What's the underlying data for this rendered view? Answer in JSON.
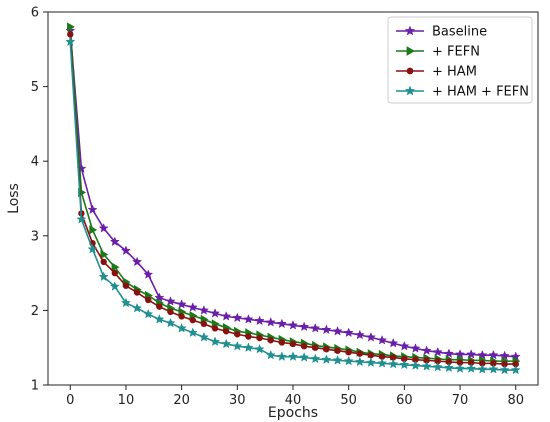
{
  "chart_data": {
    "type": "line",
    "title": "",
    "xlabel": "Epochs",
    "ylabel": "Loss",
    "xlim": [
      -4,
      84
    ],
    "ylim": [
      1,
      6
    ],
    "xticks": [
      0,
      10,
      20,
      30,
      40,
      50,
      60,
      70,
      80
    ],
    "yticks": [
      1,
      2,
      3,
      4,
      5,
      6
    ],
    "legend_position": "top-right",
    "grid": false,
    "series": [
      {
        "name": "Baseline",
        "color": "#6a1fa8",
        "marker": "star",
        "x": [
          0,
          2,
          4,
          6,
          8,
          10,
          12,
          14,
          16,
          18,
          20,
          22,
          24,
          26,
          28,
          30,
          32,
          34,
          36,
          38,
          40,
          42,
          44,
          46,
          48,
          50,
          52,
          54,
          56,
          58,
          60,
          62,
          64,
          66,
          68,
          70,
          72,
          74,
          76,
          78,
          80
        ],
        "y": [
          5.75,
          3.9,
          3.35,
          3.1,
          2.92,
          2.8,
          2.65,
          2.48,
          2.17,
          2.12,
          2.08,
          2.04,
          2.0,
          1.96,
          1.92,
          1.9,
          1.88,
          1.86,
          1.84,
          1.82,
          1.8,
          1.78,
          1.76,
          1.74,
          1.72,
          1.7,
          1.67,
          1.64,
          1.6,
          1.56,
          1.52,
          1.49,
          1.46,
          1.44,
          1.42,
          1.41,
          1.41,
          1.4,
          1.4,
          1.39,
          1.38
        ]
      },
      {
        "name": "+ FEFN",
        "color": "#1a7a1a",
        "marker": "triangle-right",
        "x": [
          0,
          2,
          4,
          6,
          8,
          10,
          12,
          14,
          16,
          18,
          20,
          22,
          24,
          26,
          28,
          30,
          32,
          34,
          36,
          38,
          40,
          42,
          44,
          46,
          48,
          50,
          52,
          54,
          56,
          58,
          60,
          62,
          64,
          66,
          68,
          70,
          72,
          74,
          76,
          78,
          80
        ],
        "y": [
          5.8,
          3.58,
          3.08,
          2.75,
          2.58,
          2.38,
          2.28,
          2.2,
          2.1,
          2.03,
          1.98,
          1.93,
          1.88,
          1.82,
          1.77,
          1.72,
          1.7,
          1.67,
          1.64,
          1.61,
          1.58,
          1.56,
          1.53,
          1.51,
          1.49,
          1.47,
          1.44,
          1.42,
          1.41,
          1.39,
          1.38,
          1.37,
          1.36,
          1.35,
          1.34,
          1.34,
          1.33,
          1.33,
          1.32,
          1.32,
          1.32
        ]
      },
      {
        "name": "+ HAM",
        "color": "#8b1010",
        "marker": "circle",
        "x": [
          0,
          2,
          4,
          6,
          8,
          10,
          12,
          14,
          16,
          18,
          20,
          22,
          24,
          26,
          28,
          30,
          32,
          34,
          36,
          38,
          40,
          42,
          44,
          46,
          48,
          50,
          52,
          54,
          56,
          58,
          60,
          62,
          64,
          66,
          68,
          70,
          72,
          74,
          76,
          78,
          80
        ],
        "y": [
          5.7,
          3.3,
          2.9,
          2.65,
          2.5,
          2.33,
          2.24,
          2.14,
          2.05,
          1.98,
          1.92,
          1.87,
          1.82,
          1.76,
          1.72,
          1.68,
          1.65,
          1.63,
          1.6,
          1.57,
          1.55,
          1.52,
          1.5,
          1.48,
          1.46,
          1.44,
          1.42,
          1.4,
          1.38,
          1.37,
          1.35,
          1.34,
          1.33,
          1.32,
          1.31,
          1.3,
          1.3,
          1.29,
          1.29,
          1.28,
          1.28
        ]
      },
      {
        "name": "+ HAM + FEFN",
        "color": "#1f8f8f",
        "marker": "star",
        "x": [
          0,
          2,
          4,
          6,
          8,
          10,
          12,
          14,
          16,
          18,
          20,
          22,
          24,
          26,
          28,
          30,
          32,
          34,
          36,
          38,
          40,
          42,
          44,
          46,
          48,
          50,
          52,
          54,
          56,
          58,
          60,
          62,
          64,
          66,
          68,
          70,
          72,
          74,
          76,
          78,
          80
        ],
        "y": [
          5.6,
          3.22,
          2.82,
          2.45,
          2.32,
          2.1,
          2.03,
          1.95,
          1.88,
          1.83,
          1.76,
          1.7,
          1.64,
          1.58,
          1.55,
          1.52,
          1.5,
          1.48,
          1.4,
          1.38,
          1.38,
          1.37,
          1.35,
          1.34,
          1.33,
          1.32,
          1.31,
          1.3,
          1.29,
          1.28,
          1.27,
          1.26,
          1.25,
          1.24,
          1.23,
          1.22,
          1.22,
          1.21,
          1.21,
          1.2,
          1.2
        ]
      }
    ]
  }
}
